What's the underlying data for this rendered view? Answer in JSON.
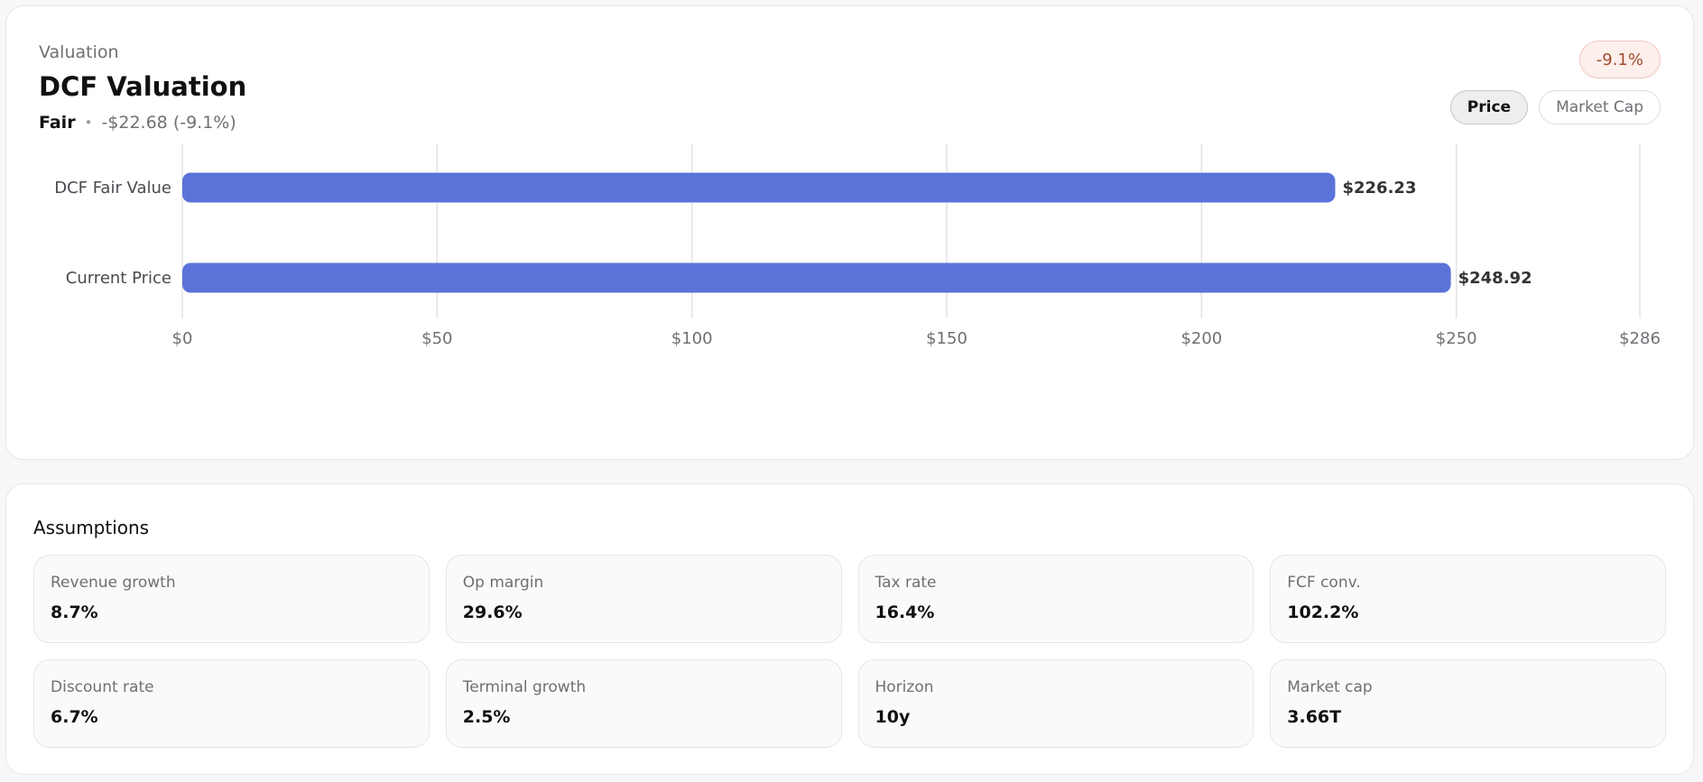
{
  "header": {
    "eyebrow": "Valuation",
    "title": "DCF Valuation",
    "status": "Fair",
    "separator": "•",
    "delta": "-$22.68 (-9.1%)",
    "badge": "-9.1%"
  },
  "toggle": {
    "price": "Price",
    "market_cap": "Market Cap",
    "selected": "Price"
  },
  "chart_data": {
    "type": "bar",
    "orientation": "horizontal",
    "categories": [
      "DCF Fair Value",
      "Current Price"
    ],
    "values": [
      226.23,
      248.92
    ],
    "value_labels": [
      "$226.23",
      "$248.92"
    ],
    "xlim": [
      0,
      286
    ],
    "xticks": [
      0,
      50,
      100,
      150,
      200,
      250,
      286
    ],
    "xtick_labels": [
      "$0",
      "$50",
      "$100",
      "$150",
      "$200",
      "$250",
      "$286"
    ],
    "grid": true,
    "bar_color": "#5b73d9"
  },
  "assumptions": {
    "title": "Assumptions",
    "items": [
      {
        "label": "Revenue growth",
        "value": "8.7%"
      },
      {
        "label": "Op margin",
        "value": "29.6%"
      },
      {
        "label": "Tax rate",
        "value": "16.4%"
      },
      {
        "label": "FCF conv.",
        "value": "102.2%"
      },
      {
        "label": "Discount rate",
        "value": "6.7%"
      },
      {
        "label": "Terminal growth",
        "value": "2.5%"
      },
      {
        "label": "Horizon",
        "value": "10y"
      },
      {
        "label": "Market cap",
        "value": "3.66T"
      }
    ]
  }
}
